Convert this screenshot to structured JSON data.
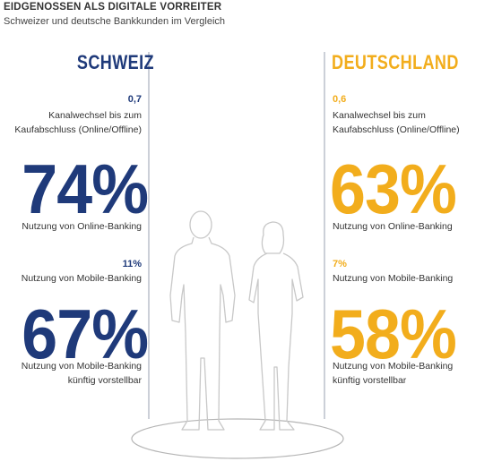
{
  "header": {
    "title": "EIDGENOSSEN ALS DIGITALE VORREITER",
    "subtitle": "Schweizer und deutsche Bankkunden im Vergleich"
  },
  "colors": {
    "schweiz": "#1f3a7a",
    "deutschland": "#f2ad1c",
    "line": "#9aa2b0"
  },
  "chart_data": {
    "type": "table",
    "series": [
      {
        "name": "SCHWEIZ",
        "values": [
          {
            "label": "Kanalwechsel bis zum Kaufabschluss (Online/Offline)",
            "value": "0,7"
          },
          {
            "label": "Nutzung von Online-Banking",
            "value": "74%"
          },
          {
            "label": "Nutzung von Mobile-Banking",
            "value": "11%"
          },
          {
            "label": "Nutzung von Mobile-Banking künftig vorstellbar",
            "value": "67%"
          }
        ]
      },
      {
        "name": "DEUTSCHLAND",
        "values": [
          {
            "label": "Kanalwechsel bis zum Kaufabschluss (Online/Offline)",
            "value": "0,6"
          },
          {
            "label": "Nutzung von Online-Banking",
            "value": "63%"
          },
          {
            "label": "Nutzung von Mobile-Banking",
            "value": "7%"
          },
          {
            "label": "Nutzung von Mobile-Banking künftig vorstellbar",
            "value": "58%"
          }
        ]
      }
    ]
  },
  "labels": {
    "ch": {
      "kanal_line1": "Kanalwechsel bis zum",
      "kanal_line2": "Kaufabschluss (Online/Offline)",
      "online": "Nutzung von Online-Banking",
      "mobile": "Nutzung von Mobile-Banking",
      "future_line1": "Nutzung von Mobile-Banking",
      "future_line2": "künftig vorstellbar"
    },
    "de": {
      "kanal_line1": "Kanalwechsel bis zum",
      "kanal_line2": "Kaufabschluss (Online/Offline)",
      "online": "Nutzung von Online-Banking",
      "mobile": "Nutzung von Mobile-Banking",
      "future_line1": "Nutzung von Mobile-Banking",
      "future_line2": "künftig vorstellbar"
    }
  }
}
